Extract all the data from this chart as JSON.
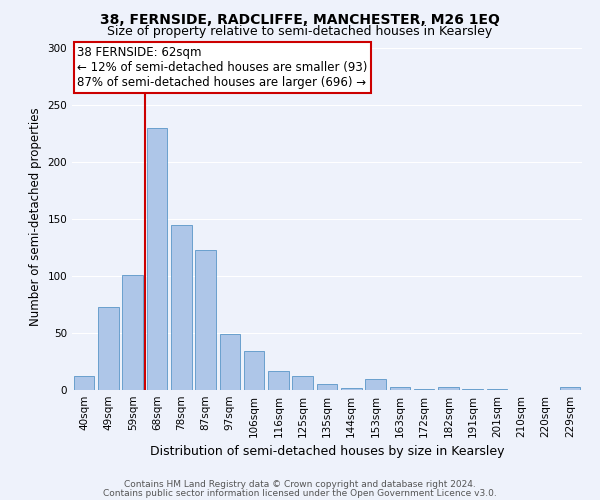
{
  "title": "38, FERNSIDE, RADCLIFFE, MANCHESTER, M26 1EQ",
  "subtitle": "Size of property relative to semi-detached houses in Kearsley",
  "xlabel": "Distribution of semi-detached houses by size in Kearsley",
  "ylabel": "Number of semi-detached properties",
  "footnote1": "Contains HM Land Registry data © Crown copyright and database right 2024.",
  "footnote2": "Contains public sector information licensed under the Open Government Licence v3.0.",
  "categories": [
    "40sqm",
    "49sqm",
    "59sqm",
    "68sqm",
    "78sqm",
    "87sqm",
    "97sqm",
    "106sqm",
    "116sqm",
    "125sqm",
    "135sqm",
    "144sqm",
    "153sqm",
    "163sqm",
    "172sqm",
    "182sqm",
    "191sqm",
    "201sqm",
    "210sqm",
    "220sqm",
    "229sqm"
  ],
  "values": [
    12,
    73,
    101,
    230,
    145,
    123,
    49,
    34,
    17,
    12,
    5,
    2,
    10,
    3,
    1,
    3,
    1,
    1,
    0,
    0,
    3
  ],
  "bar_color": "#aec6e8",
  "bar_edge_color": "#5a96c8",
  "property_line_x": 2.5,
  "property_label": "38 FERNSIDE: 62sqm",
  "annotation_line1": "← 12% of semi-detached houses are smaller (93)",
  "annotation_line2": "87% of semi-detached houses are larger (696) →",
  "annotation_box_color": "#ffffff",
  "annotation_box_edge": "#cc0000",
  "red_line_color": "#cc0000",
  "ylim": [
    0,
    305
  ],
  "yticks": [
    0,
    50,
    100,
    150,
    200,
    250,
    300
  ],
  "background_color": "#eef2fb",
  "grid_color": "#ffffff",
  "title_fontsize": 10,
  "subtitle_fontsize": 9,
  "xlabel_fontsize": 9,
  "ylabel_fontsize": 8.5,
  "tick_fontsize": 7.5,
  "annotation_fontsize": 8.5,
  "footnote_fontsize": 6.5
}
